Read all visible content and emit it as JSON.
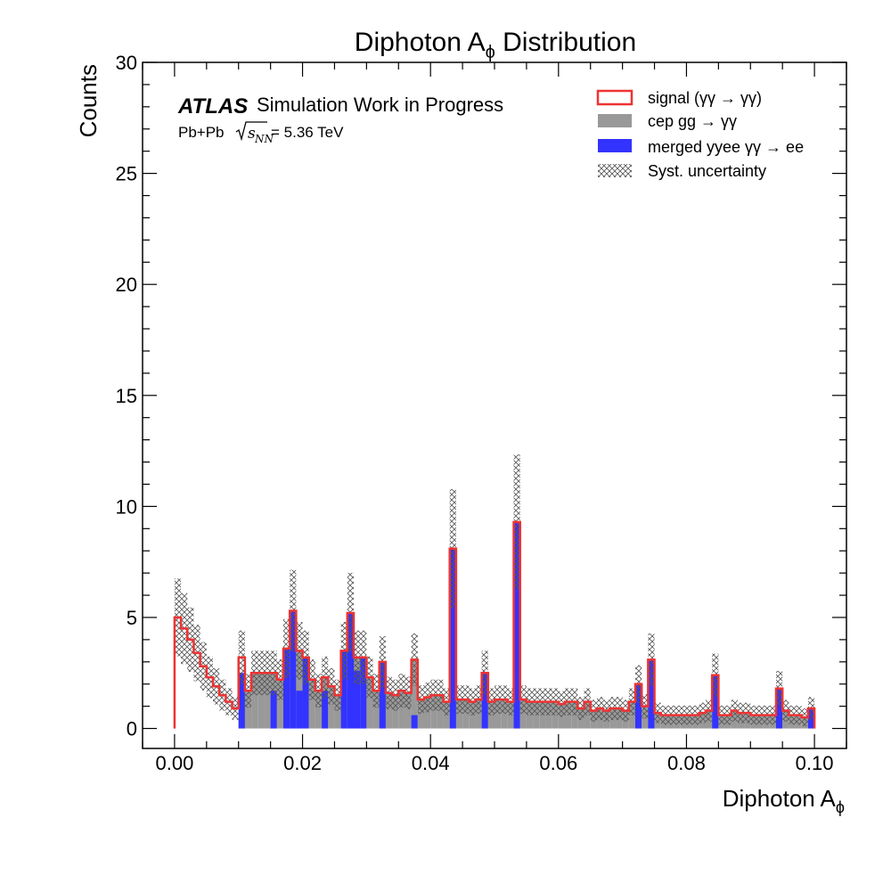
{
  "chart_data": {
    "type": "histogram",
    "title": "Diphoton A",
    "title_sub": "ϕ",
    "title_tail": " Distribution",
    "xlabel": "Diphoton A",
    "xlabel_sub": "ϕ",
    "ylabel": "Counts",
    "xlim": [
      -0.005,
      0.105
    ],
    "ylim": [
      -0.9,
      30
    ],
    "x_ticks": [
      0,
      0.02,
      0.04,
      0.06,
      0.08,
      0.1
    ],
    "x_tick_labels": [
      "0.00",
      "0.02",
      "0.04",
      "0.06",
      "0.08",
      "0.10"
    ],
    "y_ticks": [
      0,
      5,
      10,
      15,
      20,
      25,
      30
    ],
    "y_tick_labels": [
      "0",
      "5",
      "10",
      "15",
      "20",
      "25",
      "30"
    ],
    "atlas_label": "ATLAS",
    "atlas_text": "Simulation Work in Progress",
    "energy_prefix": "Pb+Pb",
    "energy_value": "= 5.36 TeV",
    "legend_position": "top-right",
    "legend": [
      {
        "key": "signal",
        "label": "signal  (γγ → γγ)"
      },
      {
        "key": "cep",
        "label": "cep  gg → γγ"
      },
      {
        "key": "merged",
        "label": "merged yyee  γγ → ee"
      },
      {
        "key": "syst",
        "label": "Syst. uncertainty"
      }
    ],
    "colors": {
      "signal": "#ee3333",
      "cep": "#999999",
      "merged": "#3333ff",
      "syst_hatch": "#555555"
    },
    "bin_width": 0.001,
    "x_start": 0.0,
    "signal": [
      5.0,
      4.5,
      4.0,
      3.4,
      2.8,
      2.3,
      1.9,
      1.5,
      1.2,
      0.9,
      0.7,
      0.0,
      0.0,
      0.0,
      0.0,
      0.0,
      0.0,
      0.0,
      0.0,
      0.0,
      0.0,
      0.0,
      0.0,
      0.0,
      0.0,
      0.0,
      0.0,
      0.0,
      0.0,
      0.0,
      0.0,
      0.0,
      0.0,
      0.0,
      0.0,
      0.0,
      0.0,
      0.0,
      0.0,
      0.0,
      0.0,
      0.0,
      0.0,
      0.0,
      0.0,
      0.0,
      0.0,
      0.0,
      0.0,
      0.0,
      0.0,
      0.0,
      0.0,
      0.0,
      0.0,
      0.0,
      0.0,
      0.0,
      0.0,
      0.0,
      0.0,
      0.0,
      0.0,
      0.0,
      0.0,
      0.0,
      0.0,
      0.0,
      0.0,
      0.0,
      0.0,
      0.0,
      0.0,
      0.0,
      0.0,
      0.0,
      0.0,
      0.0,
      0.0,
      0.0,
      0.0,
      0.0,
      0.0,
      0.0,
      0.0,
      0.0,
      0.0,
      0.0,
      0.0,
      0.0,
      0.0,
      0.0,
      0.0,
      0.0,
      0.0,
      0.0,
      0.0,
      0.0,
      0.0,
      0.0
    ],
    "cep": [
      0.0,
      0.0,
      0.0,
      0.0,
      0.0,
      0.0,
      0.0,
      0.0,
      0.0,
      0.0,
      1.6,
      1.7,
      2.5,
      2.5,
      2.5,
      2.5,
      2.2,
      2.2,
      3.5,
      3.5,
      3.0,
      2.2,
      1.7,
      2.3,
      1.9,
      1.5,
      3.5,
      3.5,
      3.2,
      2.5,
      2.3,
      1.7,
      3.0,
      1.6,
      1.5,
      1.7,
      1.6,
      3.1,
      1.3,
      1.4,
      1.5,
      1.5,
      1.2,
      1.3,
      1.3,
      1.3,
      1.2,
      1.3,
      1.3,
      1.2,
      1.3,
      1.3,
      1.2,
      1.3,
      1.3,
      1.2,
      1.2,
      1.2,
      1.2,
      1.2,
      1.1,
      1.2,
      1.2,
      0.9,
      1.2,
      0.8,
      0.9,
      0.8,
      0.9,
      0.9,
      0.8,
      1.2,
      0.9,
      1.0,
      0.9,
      0.7,
      0.6,
      0.6,
      0.6,
      0.6,
      0.6,
      0.6,
      0.7,
      0.8,
      0.5,
      0.6,
      0.6,
      0.8,
      0.7,
      0.7,
      0.6,
      0.6,
      0.6,
      0.6,
      1.0,
      0.8,
      0.6,
      0.6,
      0.5,
      0.6
    ],
    "merged": [
      0.0,
      0.0,
      0.0,
      0.0,
      0.0,
      0.0,
      0.0,
      0.0,
      0.0,
      0.0,
      2.5,
      0.0,
      0.0,
      0.0,
      0.0,
      1.7,
      0.0,
      3.6,
      5.3,
      1.7,
      3.2,
      0.0,
      0.0,
      1.7,
      0.0,
      0.0,
      3.5,
      5.2,
      2.6,
      3.2,
      0.0,
      0.0,
      3.0,
      0.0,
      0.0,
      0.0,
      0.0,
      0.6,
      0.0,
      0.0,
      0.0,
      0.0,
      0.0,
      8.1,
      0.0,
      0.0,
      0.0,
      0.0,
      2.5,
      0.0,
      0.0,
      0.0,
      0.0,
      9.3,
      0.0,
      0.0,
      0.0,
      0.0,
      0.0,
      0.0,
      0.0,
      0.0,
      0.0,
      0.0,
      0.0,
      0.0,
      0.0,
      0.0,
      0.0,
      0.0,
      0.0,
      0.0,
      2.0,
      0.0,
      3.1,
      0.0,
      0.0,
      0.0,
      0.0,
      0.0,
      0.0,
      0.0,
      0.0,
      0.0,
      2.4,
      0.0,
      0.0,
      0.0,
      0.0,
      0.0,
      0.0,
      0.0,
      0.0,
      0.0,
      1.8,
      0.0,
      0.0,
      0.0,
      0.0,
      0.9
    ],
    "syst_rel": 0.3
  }
}
